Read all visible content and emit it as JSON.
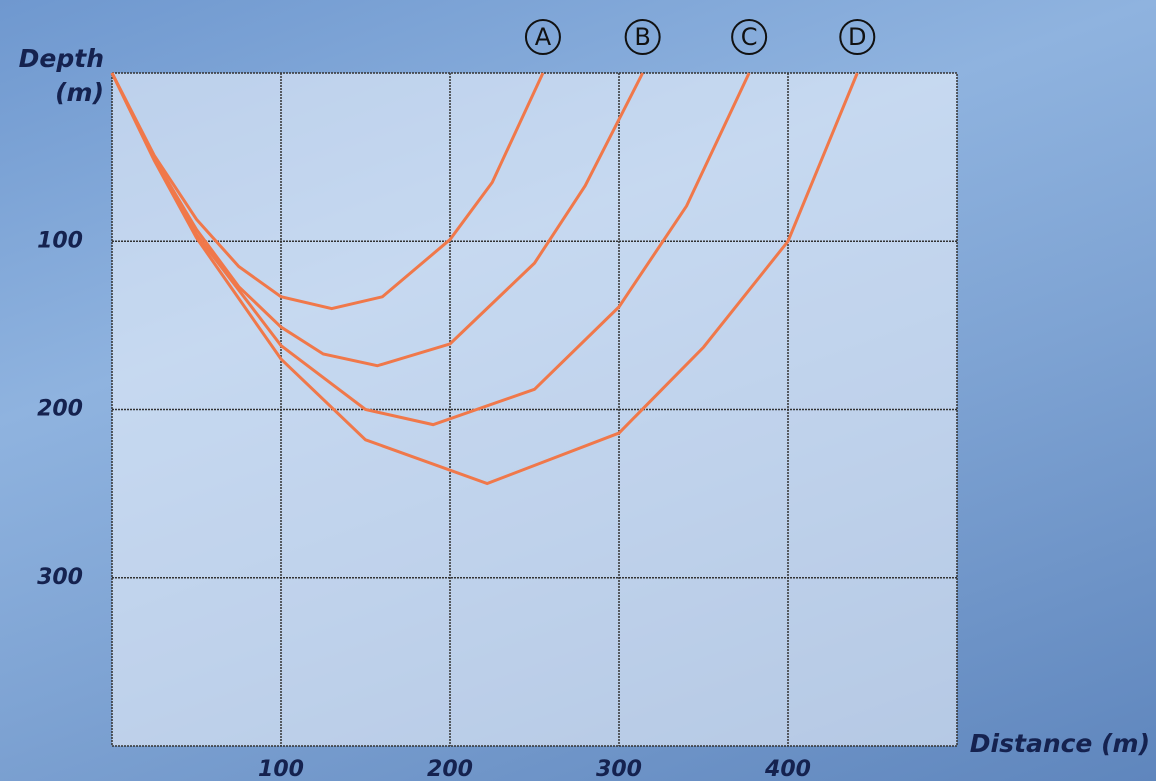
{
  "chart_data": {
    "type": "line",
    "x_label": "Distance (m)",
    "y_label": "Depth (m)",
    "xlim": [
      0,
      500
    ],
    "ylim": [
      400,
      0
    ],
    "xticks": [
      100,
      200,
      300,
      400
    ],
    "yticks": [
      100,
      200,
      300
    ],
    "grid": true,
    "series": [
      {
        "name": "A",
        "color": "#f0784a",
        "x": [
          0,
          25,
          50,
          75,
          100,
          130,
          160,
          200,
          225,
          255
        ],
        "values": [
          0,
          49,
          87,
          115,
          133,
          140,
          133,
          99,
          65,
          0
        ]
      },
      {
        "name": "B",
        "color": "#f0784a",
        "x": [
          0,
          25,
          50,
          75,
          100,
          125,
          157,
          200,
          250,
          280,
          314
        ],
        "values": [
          0,
          51,
          93,
          127,
          151,
          167,
          174,
          161,
          113,
          67,
          0
        ]
      },
      {
        "name": "C",
        "color": "#f0784a",
        "x": [
          0,
          25,
          50,
          100,
          150,
          190,
          250,
          300,
          340,
          377
        ],
        "values": [
          0,
          51,
          96,
          162,
          200,
          209,
          188,
          139,
          79,
          0
        ]
      },
      {
        "name": "D",
        "color": "#f0784a",
        "x": [
          0,
          25,
          50,
          100,
          150,
          222,
          300,
          350,
          400,
          441
        ],
        "values": [
          0,
          52,
          98,
          170,
          218,
          244,
          214,
          163,
          100,
          0
        ]
      }
    ]
  }
}
